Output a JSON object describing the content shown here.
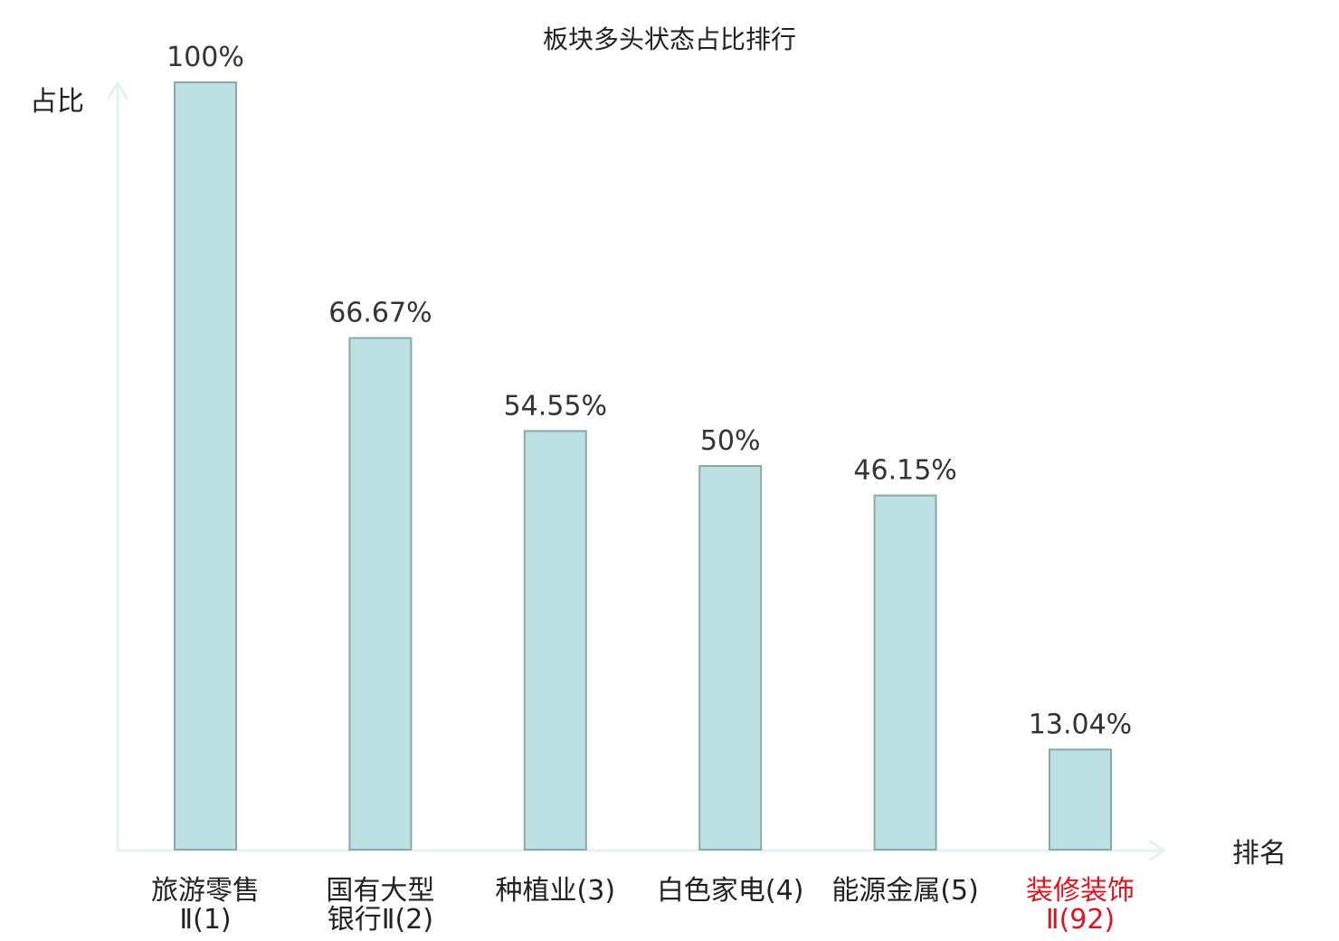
{
  "chart_data": {
    "type": "bar",
    "title": "板块多头状态占比排行",
    "ylabel": "占比",
    "xlabel": "排名",
    "ylim": [
      0,
      100
    ],
    "grid": false,
    "unit": "%",
    "categories": [
      {
        "line1": "旅游零售",
        "line2": "Ⅱ(1)",
        "highlight": false
      },
      {
        "line1": "国有大型",
        "line2": "银行Ⅱ(2)",
        "highlight": false
      },
      {
        "line1": "种植业(3)",
        "line2": "",
        "highlight": false
      },
      {
        "line1": "白色家电(4)",
        "line2": "",
        "highlight": false
      },
      {
        "line1": "能源金属(5)",
        "line2": "",
        "highlight": false
      },
      {
        "line1": "装修装饰",
        "line2": "Ⅱ(92)",
        "highlight": true
      }
    ],
    "values": [
      100,
      66.67,
      54.55,
      50,
      46.15,
      13.04
    ],
    "value_labels": [
      "100%",
      "66.67%",
      "54.55%",
      "50%",
      "46.15%",
      "13.04%"
    ],
    "colors": {
      "bar_fill": "#bde0e3",
      "bar_stroke": "#8aa9ab",
      "axis": "#e0f3f1",
      "text": "#222222",
      "highlight_text": "#e0141e"
    }
  }
}
